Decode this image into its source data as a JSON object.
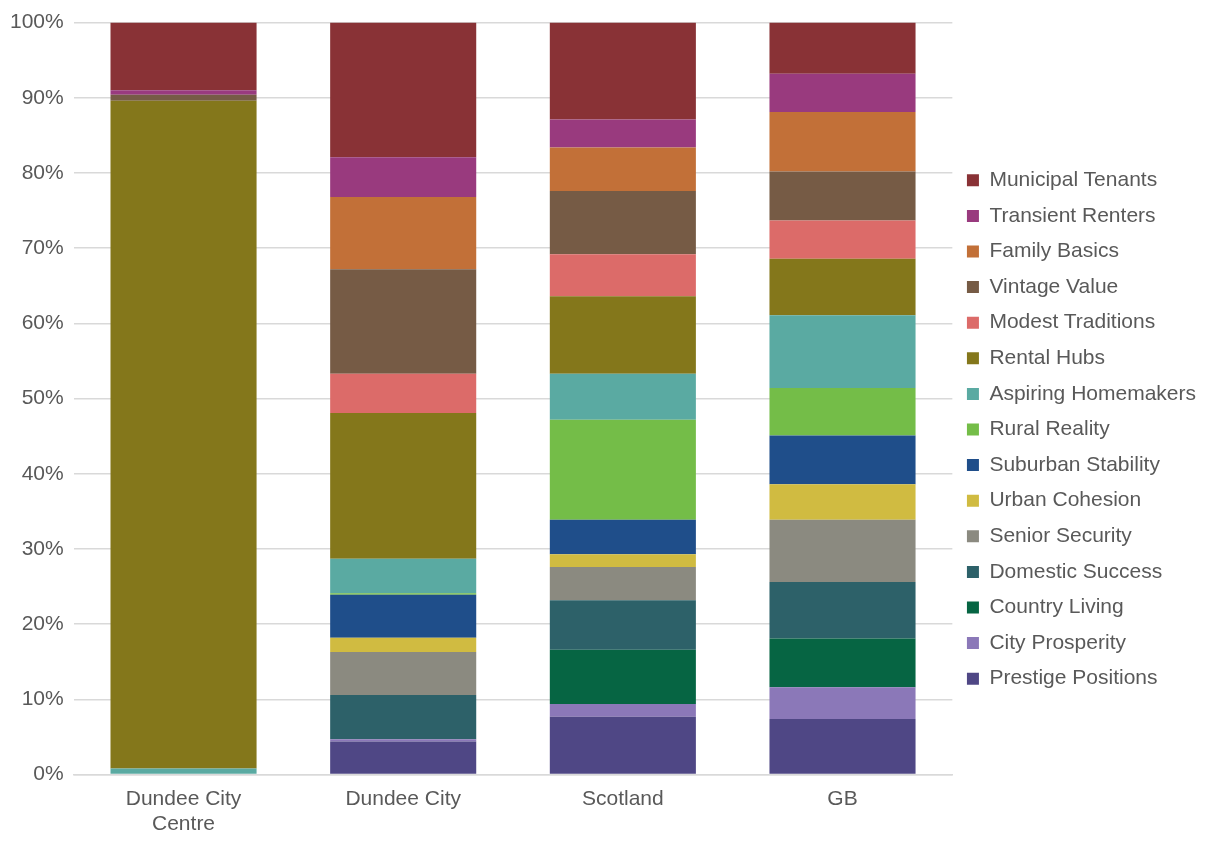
{
  "chart_data": {
    "type": "bar",
    "stacked": true,
    "grid": "y",
    "legend": "right",
    "categories": [
      "Dundee City Centre",
      "Dundee City",
      "Scotland",
      "GB"
    ],
    "ylim": [
      0,
      100
    ],
    "yticks": [
      {
        "value": 0,
        "label": "0%"
      },
      {
        "value": 10,
        "label": "10%"
      },
      {
        "value": 20,
        "label": "20%"
      },
      {
        "value": 30,
        "label": "30%"
      },
      {
        "value": 40,
        "label": "40%"
      },
      {
        "value": 50,
        "label": "50%"
      },
      {
        "value": 60,
        "label": "60%"
      },
      {
        "value": 70,
        "label": "70%"
      },
      {
        "value": 80,
        "label": "80%"
      },
      {
        "value": 90,
        "label": "90%"
      },
      {
        "value": 100,
        "label": "100%"
      }
    ],
    "series": [
      {
        "name": "Prestige Positions",
        "color": "#4f4785",
        "values": [
          0,
          4.4,
          7.7,
          7.4
        ]
      },
      {
        "name": "City Prosperity",
        "color": "#8b78b8",
        "values": [
          0,
          0.3,
          1.7,
          4.2
        ]
      },
      {
        "name": "Country Living",
        "color": "#066543",
        "values": [
          0,
          0,
          7.2,
          6.5
        ]
      },
      {
        "name": "Domestic Success",
        "color": "#2d6169",
        "values": [
          0,
          5.9,
          6.6,
          7.5
        ]
      },
      {
        "name": "Senior Security",
        "color": "#8b8a80",
        "values": [
          0,
          5.7,
          4.4,
          8.3
        ]
      },
      {
        "name": "Urban Cohesion",
        "color": "#d0bb41",
        "values": [
          0,
          1.9,
          1.7,
          4.7
        ]
      },
      {
        "name": "Suburban Stability",
        "color": "#1f4e8a",
        "values": [
          0,
          5.7,
          4.6,
          6.5
        ]
      },
      {
        "name": "Rural Reality",
        "color": "#74bd48",
        "values": [
          0,
          0.2,
          13.3,
          6.3
        ]
      },
      {
        "name": "Aspiring Homemakers",
        "color": "#5aaaa2",
        "values": [
          0.8,
          4.6,
          6.1,
          9.7
        ]
      },
      {
        "name": "Rental Hubs",
        "color": "#84771b",
        "values": [
          88.8,
          19.4,
          10.3,
          7.5
        ]
      },
      {
        "name": "Modest Traditions",
        "color": "#dc6b69",
        "values": [
          0,
          5.2,
          5.6,
          5.1
        ]
      },
      {
        "name": "Vintage Value",
        "color": "#765b45",
        "values": [
          0.8,
          13.9,
          8.4,
          6.5
        ]
      },
      {
        "name": "Family Basics",
        "color": "#c27038",
        "values": [
          0,
          9.6,
          5.8,
          7.9
        ]
      },
      {
        "name": "Transient Renters",
        "color": "#993a7e",
        "values": [
          0.6,
          5.3,
          3.7,
          5.1
        ]
      },
      {
        "name": "Municipal Tenants",
        "color": "#893236",
        "values": [
          9.0,
          17.9,
          12.9,
          6.8
        ]
      }
    ]
  }
}
